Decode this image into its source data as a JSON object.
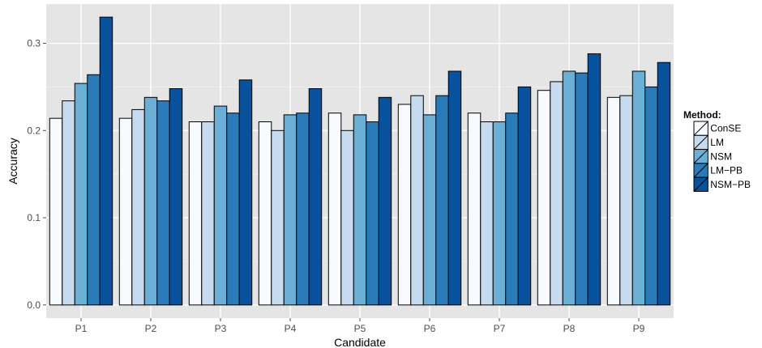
{
  "chart_data": {
    "type": "bar",
    "xlabel": "Candidate",
    "ylabel": "Accuracy",
    "ylim": [
      -0.015,
      0.345
    ],
    "yticks": [
      0.0,
      0.1,
      0.2,
      0.3
    ],
    "ytick_labels": [
      "0.0",
      "0.1",
      "0.2",
      "0.3"
    ],
    "categories": [
      "P1",
      "P2",
      "P3",
      "P4",
      "P5",
      "P6",
      "P7",
      "P8",
      "P9"
    ],
    "legend_title": "Method:",
    "legend_position": "right",
    "grid": true,
    "series": [
      {
        "name": "ConSE",
        "color": "#f7fbff",
        "values": [
          0.214,
          0.214,
          0.21,
          0.21,
          0.22,
          0.23,
          0.22,
          0.246,
          0.238
        ]
      },
      {
        "name": "LM",
        "color": "#c6dbef",
        "values": [
          0.234,
          0.224,
          0.21,
          0.2,
          0.2,
          0.24,
          0.21,
          0.256,
          0.24
        ]
      },
      {
        "name": "NSM",
        "color": "#6baed6",
        "values": [
          0.254,
          0.238,
          0.228,
          0.218,
          0.218,
          0.218,
          0.21,
          0.268,
          0.268
        ]
      },
      {
        "name": "LM−PB",
        "color": "#2b7bba",
        "values": [
          0.264,
          0.234,
          0.22,
          0.22,
          0.21,
          0.24,
          0.22,
          0.266,
          0.25
        ]
      },
      {
        "name": "NSM−PB",
        "color": "#08519c",
        "values": [
          0.33,
          0.248,
          0.258,
          0.248,
          0.238,
          0.268,
          0.25,
          0.288,
          0.278
        ]
      }
    ]
  }
}
